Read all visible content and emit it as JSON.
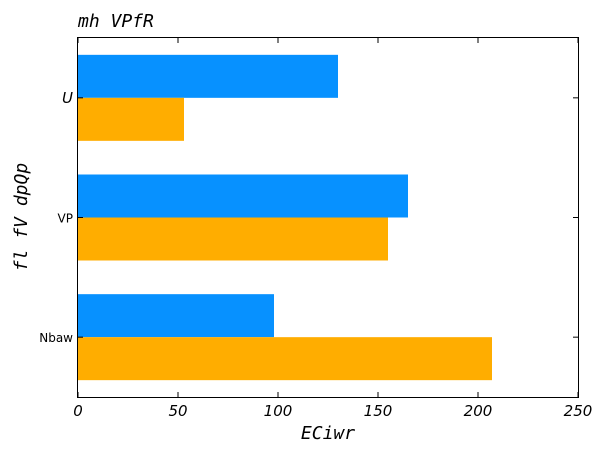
{
  "chart_data": {
    "type": "bar",
    "orientation": "horizontal",
    "title": "mh VPfR",
    "xlabel": "ECiwr",
    "ylabel": "fl fV dpQp",
    "categories": [
      "U",
      "VP",
      "Nbaw"
    ],
    "series": [
      {
        "color": "#0791FF",
        "values": [
          130,
          165,
          98
        ]
      },
      {
        "color": "#FFAD00",
        "values": [
          53,
          155,
          207
        ]
      }
    ],
    "xlim": [
      0,
      250
    ],
    "xticks": [
      0,
      50,
      100,
      150,
      200,
      250
    ],
    "grid": false,
    "legend": "none"
  }
}
